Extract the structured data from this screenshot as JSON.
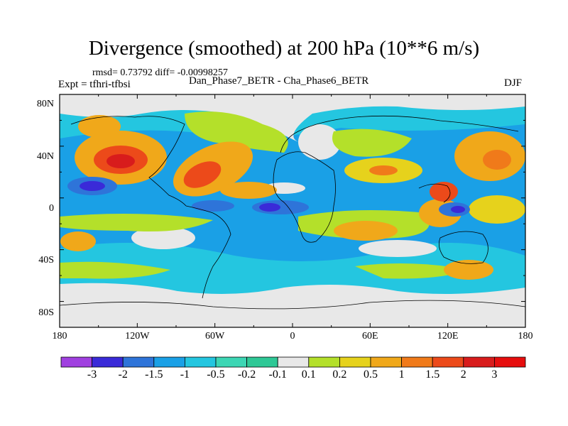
{
  "title": "Divergence (smoothed) at 200 hPa (10**6 m/s)",
  "stats": "rmsd= 0.73792 diff= -0.00998257",
  "experiment": "Expt = tfhri-tfbsi",
  "difference_label": "Dan_Phase7_BETR - Cha_Phase6_BETR",
  "season": "DJF",
  "y_ticks": [
    "80N",
    "40N",
    "0",
    "40S",
    "80S"
  ],
  "x_ticks": [
    "180",
    "120W",
    "60W",
    "0",
    "60E",
    "120E",
    "180"
  ],
  "colorbar": {
    "labels": [
      "-3",
      "-2",
      "-1.5",
      "-1",
      "-0.5",
      "-0.2",
      "-0.1",
      "0.1",
      "0.2",
      "0.5",
      "1",
      "1.5",
      "2",
      "3"
    ],
    "colors": [
      "#a040e0",
      "#3a2ad8",
      "#2e74d9",
      "#1aa0e6",
      "#24c6e0",
      "#3cd6b4",
      "#2ec896",
      "#e8e8e8",
      "#b4e02a",
      "#e6d21c",
      "#f0a81a",
      "#f07a1a",
      "#ec4a1a",
      "#d81c1c",
      "#e60e0e"
    ]
  }
}
